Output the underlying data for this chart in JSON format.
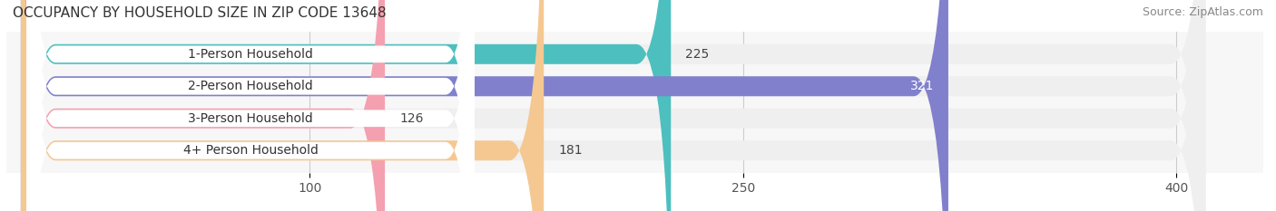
{
  "title": "OCCUPANCY BY HOUSEHOLD SIZE IN ZIP CODE 13648",
  "source": "Source: ZipAtlas.com",
  "categories": [
    "1-Person Household",
    "2-Person Household",
    "3-Person Household",
    "4+ Person Household"
  ],
  "values": [
    225,
    321,
    126,
    181
  ],
  "bar_colors": [
    "#4DBFBF",
    "#8080CC",
    "#F4A0B0",
    "#F5C892"
  ],
  "bar_bg_color": "#EFEFEF",
  "label_bg_color": "#FFFFFF",
  "xlim": [
    0,
    430
  ],
  "xticks": [
    100,
    250,
    400
  ],
  "bar_height": 0.62,
  "title_fontsize": 11,
  "source_fontsize": 9,
  "tick_fontsize": 10,
  "label_fontsize": 10,
  "value_fontsize": 10,
  "fig_bg_color": "#FFFFFF",
  "axes_bg_color": "#F7F7F7"
}
